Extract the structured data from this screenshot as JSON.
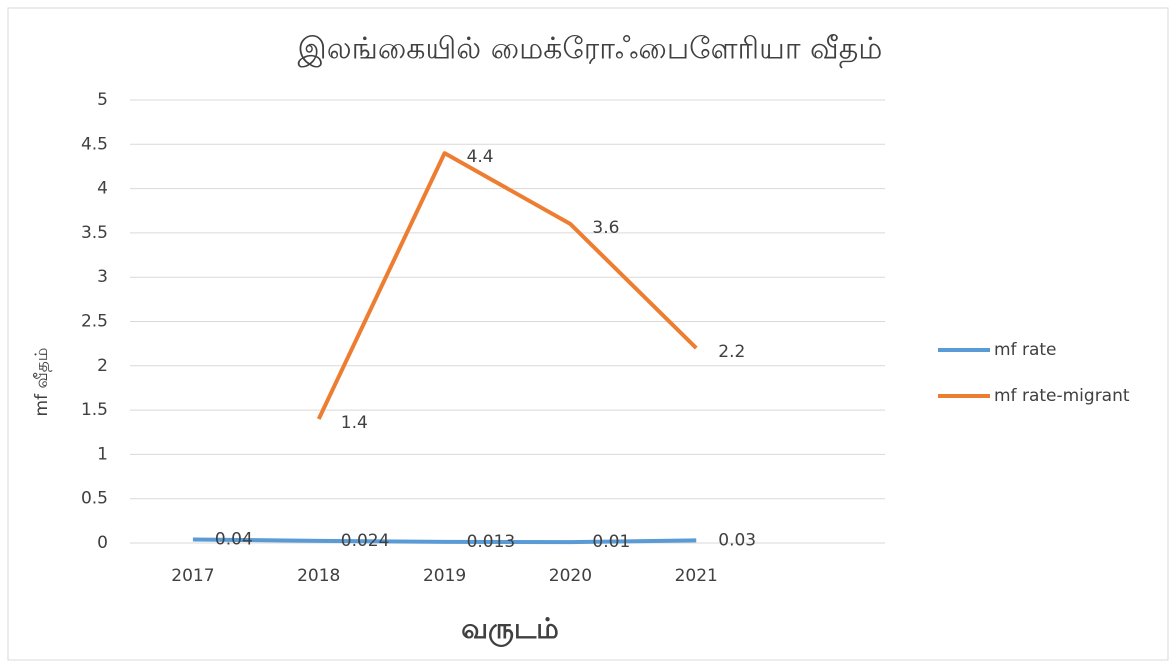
{
  "chart_data": {
    "type": "line",
    "title": "இலங்கையில் மைக்ரோஃபைளேரியா வீதம்",
    "x_label": "வருடம்",
    "y_label": "mf வீதம்",
    "categories": [
      "2017",
      "2018",
      "2019",
      "2020",
      "2021",
      null
    ],
    "series": [
      {
        "name": "mf rate",
        "color": "#5b9bd5",
        "values": [
          0.04,
          0.024,
          0.013,
          0.01,
          0.03,
          null
        ]
      },
      {
        "name": "mf rate-migrant",
        "color": "#ed7d31",
        "values": [
          null,
          1.4,
          4.4,
          3.6,
          2.2,
          null
        ]
      }
    ],
    "ylim": [
      0,
      5
    ],
    "yticks": [
      0,
      0.5,
      1,
      1.5,
      2,
      2.5,
      3,
      3.5,
      4,
      4.5,
      5
    ],
    "grid": true,
    "legend": "right",
    "data_labels": true
  }
}
